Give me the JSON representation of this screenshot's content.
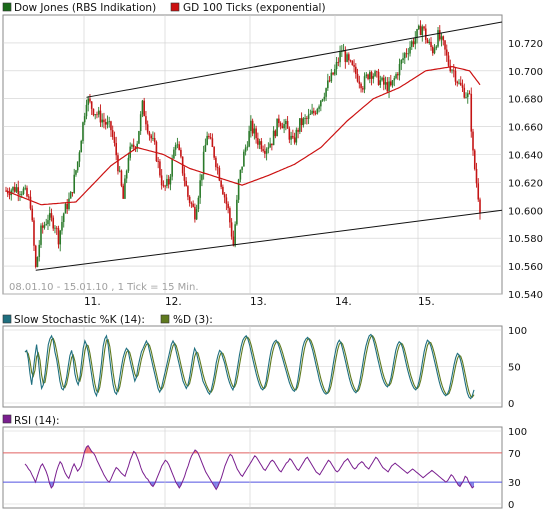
{
  "colors": {
    "up": "#2a7a2a",
    "down": "#c41414",
    "ma": "#cc1111",
    "stoch_k": "#1f6f7f",
    "stoch_d": "#5f7a1f",
    "rsi": "#7a1f8f",
    "rsi_over": "#ee6060",
    "rsi_under": "#6a6ae0",
    "band_line_70": "#e06060",
    "band_line_30": "#5050e0",
    "grid": "#cfcfcf",
    "frame": "#8a8a8a",
    "panel_bg": "#ffffff",
    "outer_bg": "#ffffff"
  },
  "main": {
    "legend": [
      {
        "label": "Dow Jones (RBS Indikation)",
        "color": "#1a6a1a",
        "icon": "green-square-icon"
      },
      {
        "label": "GD 100 Ticks (exponential)",
        "color": "#cc1111",
        "icon": "red-square-icon"
      }
    ],
    "date_range_label": "08.01.10 - 15.01.10 , 1 Tick = 15 Min.",
    "x_labels": [
      "11.",
      "12.",
      "13.",
      "14.",
      "15."
    ],
    "y_labels": [
      "10.720",
      "10.700",
      "10.680",
      "10.660",
      "10.640",
      "10.620",
      "10.600",
      "10.580",
      "10.560",
      "10.540"
    ]
  },
  "stoch": {
    "legend": [
      {
        "label": "Slow Stochastic %K (14):",
        "color": "#1f6f7f",
        "icon": "teal-square-icon"
      },
      {
        "label": "%D (3):",
        "color": "#5f7a1f",
        "icon": "olive-square-icon"
      }
    ],
    "y_labels": [
      "100",
      "50",
      "0"
    ]
  },
  "rsi": {
    "legend": [
      {
        "label": "RSI (14):",
        "color": "#7a1f8f",
        "icon": "purple-square-icon"
      }
    ],
    "y_labels": [
      "100",
      "70",
      "30",
      "0"
    ]
  },
  "chart_data": [
    {
      "type": "candlestick",
      "title": "Dow Jones (RBS Indikation)",
      "x_unit": "15-minute ticks",
      "x_range": [
        "08.01.10",
        "15.01.10"
      ],
      "day_labels": [
        "11.",
        "12.",
        "13.",
        "14.",
        "15."
      ],
      "ylim": [
        10540,
        10740
      ],
      "yticks": [
        10720,
        10700,
        10680,
        10660,
        10640,
        10620,
        10600,
        10580,
        10560,
        10540
      ],
      "series": [
        {
          "name": "Dow Jones (RBS Indikation)",
          "approx_close_path": [
            [
              0,
              10614
            ],
            [
              6,
              10616
            ],
            [
              10,
              10614
            ],
            [
              14,
              10605
            ],
            [
              17,
              10558
            ],
            [
              20,
              10585
            ],
            [
              24,
              10595
            ],
            [
              28,
              10590
            ],
            [
              30,
              10580
            ],
            [
              33,
              10598
            ],
            [
              37,
              10610
            ],
            [
              41,
              10635
            ],
            [
              46,
              10680
            ],
            [
              50,
              10672
            ],
            [
              55,
              10665
            ],
            [
              60,
              10658
            ],
            [
              63,
              10640
            ],
            [
              67,
              10608
            ],
            [
              70,
              10640
            ],
            [
              75,
              10650
            ],
            [
              78,
              10675
            ],
            [
              82,
              10655
            ],
            [
              85,
              10645
            ],
            [
              90,
              10615
            ],
            [
              93,
              10620
            ],
            [
              97,
              10650
            ],
            [
              100,
              10635
            ],
            [
              104,
              10610
            ],
            [
              108,
              10598
            ],
            [
              111,
              10620
            ],
            [
              115,
              10655
            ],
            [
              119,
              10640
            ],
            [
              123,
              10620
            ],
            [
              127,
              10600
            ],
            [
              130,
              10575
            ],
            [
              133,
              10620
            ],
            [
              136,
              10640
            ],
            [
              140,
              10660
            ],
            [
              144,
              10650
            ],
            [
              148,
              10645
            ],
            [
              152,
              10650
            ],
            [
              156,
              10665
            ],
            [
              160,
              10660
            ],
            [
              164,
              10648
            ],
            [
              168,
              10662
            ],
            [
              172,
              10665
            ],
            [
              176,
              10670
            ],
            [
              180,
              10680
            ],
            [
              184,
              10690
            ],
            [
              188,
              10700
            ],
            [
              192,
              10715
            ],
            [
              196,
              10705
            ],
            [
              200,
              10698
            ],
            [
              204,
              10690
            ],
            [
              208,
              10700
            ],
            [
              212,
              10695
            ],
            [
              216,
              10690
            ],
            [
              220,
              10688
            ],
            [
              224,
              10700
            ],
            [
              228,
              10712
            ],
            [
              232,
              10720
            ],
            [
              236,
              10728
            ],
            [
              238,
              10732
            ],
            [
              241,
              10720
            ],
            [
              244,
              10715
            ],
            [
              247,
              10725
            ],
            [
              250,
              10718
            ],
            [
              253,
              10705
            ],
            [
              256,
              10700
            ],
            [
              259,
              10690
            ],
            [
              262,
              10685
            ],
            [
              265,
              10680
            ],
            [
              267,
              10640
            ],
            [
              269,
              10620
            ],
            [
              271,
              10602
            ]
          ]
        },
        {
          "name": "GD 100 Ticks (exponential)",
          "approx_path": [
            [
              0,
              10614
            ],
            [
              20,
              10604
            ],
            [
              40,
              10606
            ],
            [
              60,
              10632
            ],
            [
              75,
              10645
            ],
            [
              90,
              10640
            ],
            [
              105,
              10630
            ],
            [
              120,
              10624
            ],
            [
              135,
              10618
            ],
            [
              150,
              10625
            ],
            [
              165,
              10633
            ],
            [
              180,
              10645
            ],
            [
              195,
              10664
            ],
            [
              210,
              10680
            ],
            [
              225,
              10688
            ],
            [
              240,
              10700
            ],
            [
              255,
              10703
            ],
            [
              265,
              10700
            ],
            [
              271,
              10690
            ]
          ]
        }
      ],
      "trend_channel": {
        "upper": [
          [
            46,
            10681
          ],
          [
            285,
            10735
          ]
        ],
        "lower": [
          [
            17,
            10557
          ],
          [
            285,
            10600
          ]
        ]
      }
    },
    {
      "type": "line",
      "title": "Slow Stochastic",
      "ylim": [
        0,
        100
      ],
      "yticks": [
        100,
        50,
        0
      ],
      "series": [
        {
          "name": "Slow Stochastic %K (14):",
          "approx_values": [
            70,
            72,
            60,
            40,
            25,
            45,
            65,
            80,
            60,
            35,
            20,
            25,
            40,
            60,
            80,
            88,
            92,
            85,
            70,
            60,
            45,
            30,
            20,
            18,
            25,
            35,
            50,
            65,
            72,
            60,
            40,
            30,
            25,
            35,
            55,
            75,
            85,
            80,
            70,
            55,
            40,
            25,
            15,
            10,
            20,
            35,
            55,
            78,
            88,
            92,
            80,
            60,
            40,
            25,
            15,
            12,
            20,
            35,
            50,
            62,
            70,
            75,
            72,
            60,
            50,
            40,
            30,
            35,
            50,
            60,
            70,
            75,
            80,
            85,
            80,
            70,
            60,
            50,
            40,
            30,
            20,
            15,
            20,
            30,
            40,
            50,
            60,
            70,
            80,
            85,
            80,
            70,
            60,
            50,
            40,
            30,
            25,
            20,
            25,
            35,
            50,
            65,
            75,
            70,
            60,
            50,
            40,
            30,
            25,
            20,
            15,
            12,
            18,
            28,
            40,
            55,
            65,
            72,
            70,
            62,
            55,
            45,
            35,
            28,
            22,
            18,
            25,
            38,
            52,
            66,
            78,
            86,
            90,
            92,
            88,
            80,
            70,
            60,
            50,
            40,
            32,
            25,
            20,
            18,
            22,
            30,
            45,
            60,
            72,
            80,
            84,
            86,
            82,
            76,
            68,
            60,
            52,
            44,
            36,
            28,
            22,
            18,
            16,
            20,
            30,
            45,
            62,
            76,
            84,
            88,
            90,
            86,
            80,
            72,
            62,
            52,
            42,
            32,
            24,
            18,
            14,
            12,
            14,
            22,
            34,
            48,
            62,
            74,
            82,
            86,
            82,
            74,
            64,
            54,
            44,
            34,
            26,
            20,
            16,
            14,
            18,
            26,
            38,
            52,
            66,
            78,
            86,
            92,
            94,
            90,
            82,
            72,
            62,
            52,
            42,
            34,
            28,
            24,
            22,
            26,
            34,
            46,
            60,
            72,
            80,
            84,
            82,
            76,
            66,
            56,
            46,
            38,
            30,
            24,
            20,
            18,
            22,
            30,
            42,
            56,
            70,
            80,
            86,
            84,
            78,
            70,
            60,
            50,
            40,
            30,
            22,
            16,
            12,
            10,
            12,
            18,
            28,
            40,
            52,
            62,
            68,
            66,
            58,
            48,
            36,
            24,
            14,
            8,
            6,
            10,
            18
          ]
        },
        {
          "name": "%D (3):",
          "approx_values": "smoothed %K"
        }
      ]
    },
    {
      "type": "line",
      "title": "RSI",
      "ylim": [
        0,
        100
      ],
      "yticks": [
        100,
        70,
        30,
        0
      ],
      "reference_lines": [
        70,
        30
      ],
      "series": [
        {
          "name": "RSI (14):",
          "approx_values": [
            55,
            52,
            48,
            45,
            40,
            35,
            30,
            38,
            45,
            52,
            55,
            50,
            45,
            38,
            28,
            22,
            25,
            35,
            45,
            52,
            58,
            55,
            48,
            42,
            38,
            35,
            42,
            50,
            55,
            50,
            45,
            48,
            52,
            62,
            72,
            78,
            80,
            76,
            72,
            70,
            66,
            60,
            55,
            50,
            45,
            40,
            36,
            32,
            30,
            34,
            40,
            45,
            50,
            48,
            45,
            42,
            40,
            38,
            45,
            52,
            60,
            66,
            72,
            70,
            64,
            58,
            50,
            44,
            40,
            36,
            34,
            30,
            26,
            24,
            28,
            34,
            40,
            46,
            52,
            56,
            60,
            58,
            54,
            48,
            42,
            36,
            30,
            26,
            22,
            26,
            32,
            38,
            46,
            52,
            60,
            66,
            70,
            74,
            72,
            68,
            62,
            56,
            50,
            44,
            40,
            36,
            32,
            28,
            24,
            20,
            24,
            30,
            36,
            44,
            52,
            58,
            64,
            68,
            66,
            60,
            54,
            48,
            44,
            40,
            38,
            42,
            46,
            50,
            54,
            58,
            62,
            66,
            64,
            60,
            56,
            52,
            48,
            46,
            50,
            54,
            58,
            60,
            58,
            54,
            50,
            46,
            44,
            48,
            52,
            56,
            58,
            62,
            60,
            56,
            52,
            48,
            46,
            50,
            54,
            58,
            62,
            64,
            60,
            56,
            52,
            48,
            44,
            42,
            40,
            44,
            48,
            52,
            56,
            60,
            58,
            54,
            50,
            46,
            44,
            46,
            50,
            54,
            58,
            60,
            62,
            58,
            54,
            50,
            48,
            50,
            54,
            56,
            58,
            56,
            52,
            50,
            48,
            52,
            56,
            60,
            64,
            62,
            58,
            54,
            50,
            48,
            46,
            44,
            48,
            52,
            54,
            56,
            54,
            52,
            50,
            48,
            46,
            44,
            42,
            44,
            46,
            48,
            46,
            44,
            42,
            40,
            38,
            36,
            38,
            40,
            42,
            44,
            46,
            44,
            42,
            40,
            38,
            36,
            34,
            32,
            30,
            32,
            36,
            40,
            38,
            34,
            30,
            26,
            24,
            28,
            32,
            38,
            36,
            30,
            26,
            22,
            24
          ]
        }
      ]
    }
  ]
}
